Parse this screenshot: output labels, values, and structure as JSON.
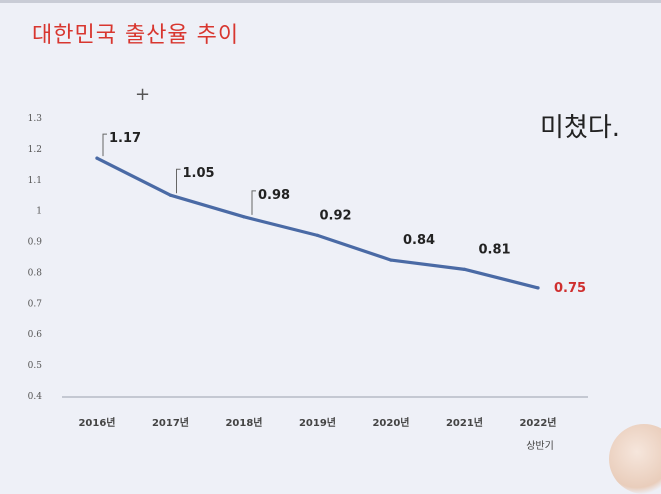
{
  "header": {
    "title": "대한민국 출산율 추이"
  },
  "overlay": {
    "comment": "미쳤다."
  },
  "chart_data": {
    "type": "line",
    "title": "대한민국 출산율 추이",
    "xlabel": "",
    "ylabel": "",
    "categories": [
      "2016년",
      "2017년",
      "2018년",
      "2019년",
      "2020년",
      "2021년",
      "2022년"
    ],
    "x_sublabels": [
      "",
      "",
      "",
      "",
      "",
      "",
      "상반기"
    ],
    "series": [
      {
        "values": [
          1.17,
          1.05,
          0.98,
          0.92,
          0.84,
          0.81,
          0.75
        ],
        "labels": [
          "1.17",
          "1.05",
          "0.98",
          "0.92",
          "0.84",
          "0.81",
          "0.75"
        ],
        "color": "#4a6aa5"
      }
    ],
    "y_ticks": [
      {
        "v": 1.3,
        "t": "1.3"
      },
      {
        "v": 1.2,
        "t": "1.2"
      },
      {
        "v": 1.1,
        "t": "1.1"
      },
      {
        "v": 1.0,
        "t": "1"
      },
      {
        "v": 0.9,
        "t": "0.9"
      },
      {
        "v": 0.8,
        "t": "0.8"
      },
      {
        "v": 0.7,
        "t": "0.7"
      },
      {
        "v": 0.6,
        "t": "0.6"
      },
      {
        "v": 0.5,
        "t": "0.5"
      },
      {
        "v": 0.4,
        "t": "0.4"
      }
    ],
    "ylim": [
      0.4,
      1.3
    ],
    "grid": false,
    "legend": "none",
    "highlight_color": "#cf2f2f"
  }
}
